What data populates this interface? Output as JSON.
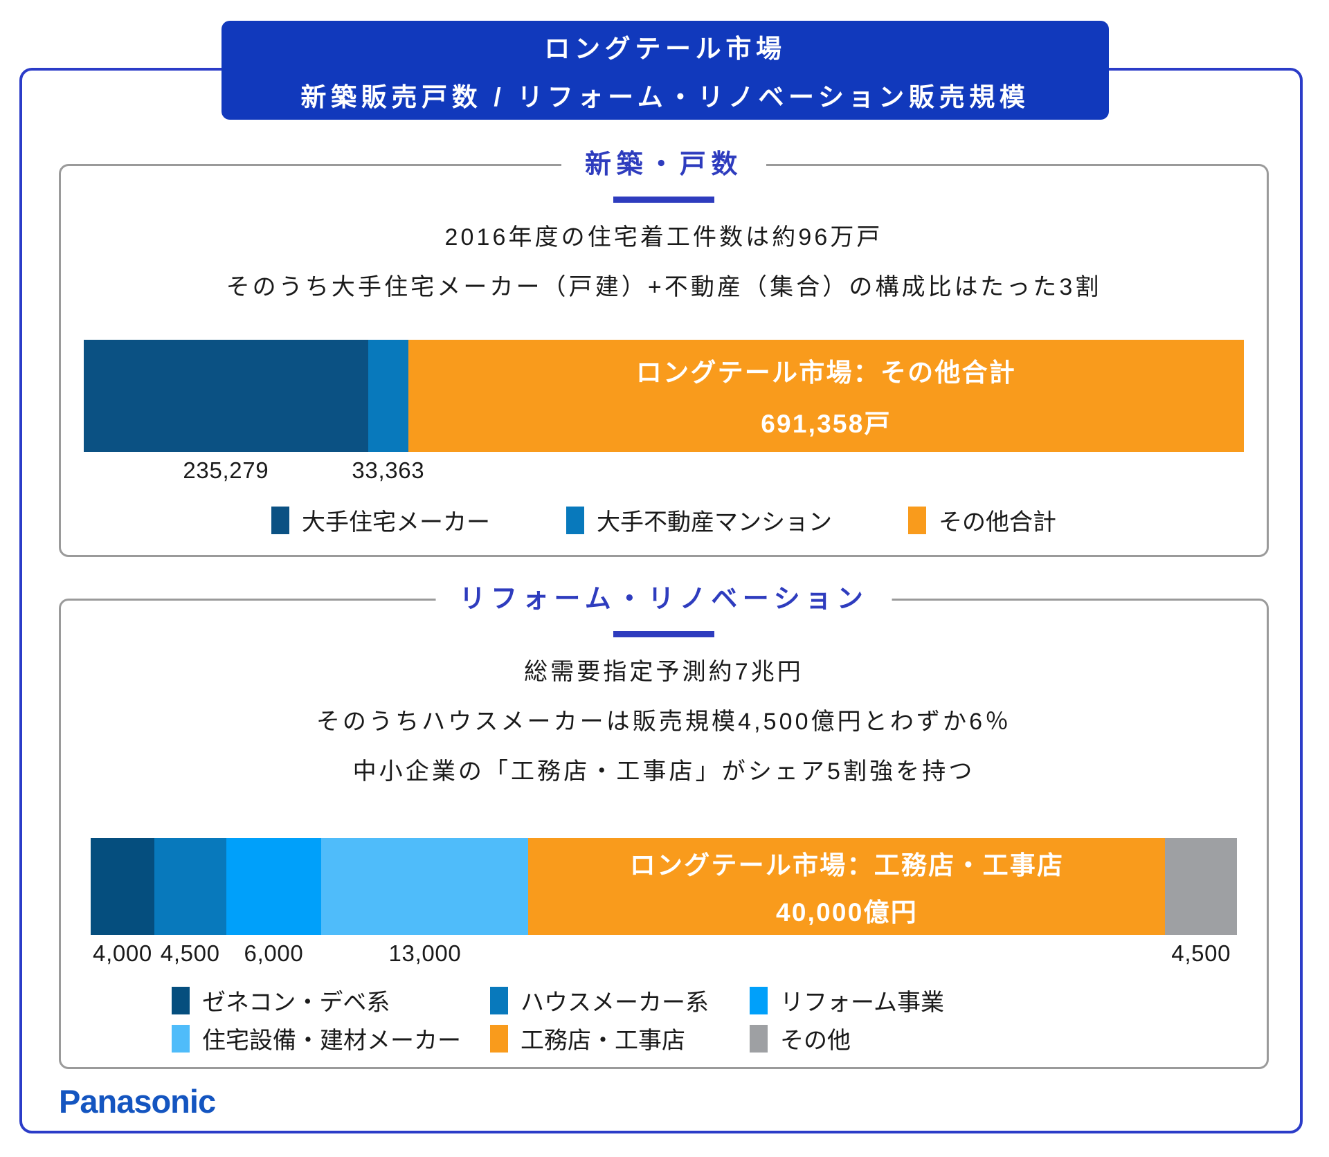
{
  "title_box": {
    "line1": "ロングテール市場",
    "line2": "新築販売戸数 / リフォーム・リノベーション販売規模"
  },
  "brand": {
    "logo_text": "Panasonic"
  },
  "colors": {
    "title_box_bg": "#1139bc",
    "outer_border": "#2b3cc8",
    "panel_border": "#9a9a9a",
    "heading_blue": "#2e3cbe",
    "body_text": "#1a1a1a",
    "bar_overlay_text": "#ffffff",
    "logo_blue": "#1455c0"
  },
  "sections": [
    {
      "heading": "新築・戸数",
      "body_lines": [
        "2016年度の住宅着工件数は約96万戸",
        "そのうち大手住宅メーカー（戸建）+不動産（集合）の構成比はたった3割"
      ]
    },
    {
      "heading": "リフォーム・リノベーション",
      "body_lines": [
        "総需要指定予測約7兆円",
        "そのうちハウスメーカーは販売規模4,500億円とわずか6％",
        "中小企業の「工務店・工事店」がシェア5割強を持つ"
      ]
    }
  ],
  "chart_data": [
    {
      "type": "bar",
      "orientation": "horizontal-stacked",
      "unit": "戸",
      "total": 960000,
      "legend_position": "bottom",
      "segments": [
        {
          "label": "大手住宅メーカー",
          "value": 235279,
          "value_label": "235,279",
          "color": "#0b5183"
        },
        {
          "label": "大手不動産マンション",
          "value": 33363,
          "value_label": "33,363",
          "color": "#0879bc"
        },
        {
          "label": "その他合計",
          "value": 691358,
          "color": "#f99b1c",
          "overlay_title": "ロングテール市場：その他合計",
          "overlay_value": "691,358戸"
        }
      ]
    },
    {
      "type": "bar",
      "orientation": "horizontal-stacked",
      "unit": "億円",
      "total": 72000,
      "legend_position": "bottom",
      "segments": [
        {
          "label": "ゼネコン・デベ系",
          "value": 4000,
          "value_label": "4,000",
          "color": "#054e7e"
        },
        {
          "label": "ハウスメーカー系",
          "value": 4500,
          "value_label": "4,500",
          "color": "#0879bc"
        },
        {
          "label": "リフォーム事業",
          "value": 6000,
          "value_label": "6,000",
          "color": "#00a0fa"
        },
        {
          "label": "住宅設備・建材メーカー",
          "value": 13000,
          "value_label": "13,000",
          "color": "#4fbcfa"
        },
        {
          "label": "工務店・工事店",
          "value": 40000,
          "color": "#f99b1c",
          "overlay_title": "ロングテール市場：工務店・工事店",
          "overlay_value": "40,000億円"
        },
        {
          "label": "その他",
          "value": 4500,
          "value_label": "4,500",
          "color": "#9ea0a3"
        }
      ]
    }
  ]
}
